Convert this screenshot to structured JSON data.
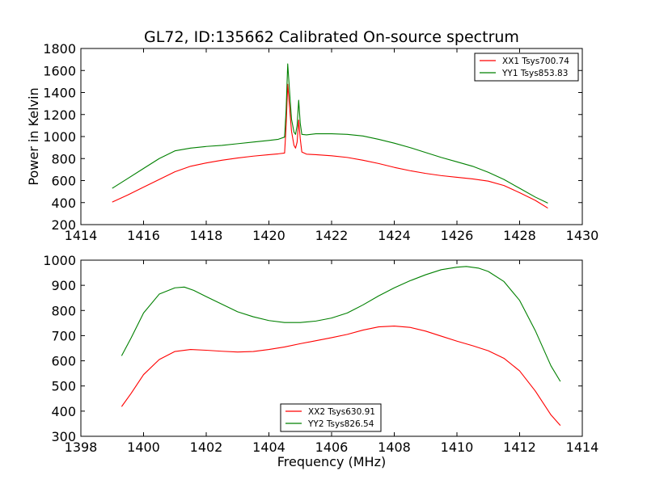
{
  "figure": {
    "title": "GL72, ID:135662 Calibrated On-source spectrum"
  },
  "colors": {
    "red": "#ff0000",
    "green": "#008000"
  },
  "chart_data": [
    {
      "type": "line",
      "title": "GL72, ID:135662 Calibrated On-source spectrum",
      "xlabel": "",
      "ylabel": "Power in Kelvin",
      "xlim": [
        1414,
        1430
      ],
      "ylim": [
        200,
        1800
      ],
      "xticks": [
        "1414",
        "1416",
        "1418",
        "1420",
        "1422",
        "1424",
        "1426",
        "1428",
        "1430"
      ],
      "yticks": [
        "200",
        "400",
        "600",
        "800",
        "1000",
        "1200",
        "1400",
        "1600",
        "1800"
      ],
      "grid": false,
      "legend_position": "top-right",
      "series": [
        {
          "name": "XX1 Tsys700.74",
          "color": "#ff0000",
          "points": [
            [
              1415.0,
              405
            ],
            [
              1415.5,
              470
            ],
            [
              1416.0,
              540
            ],
            [
              1416.5,
              610
            ],
            [
              1417.0,
              680
            ],
            [
              1417.5,
              730
            ],
            [
              1418.0,
              760
            ],
            [
              1418.5,
              785
            ],
            [
              1419.0,
              805
            ],
            [
              1419.5,
              822
            ],
            [
              1420.0,
              835
            ],
            [
              1420.3,
              843
            ],
            [
              1420.5,
              850
            ],
            [
              1420.55,
              1100
            ],
            [
              1420.6,
              1475
            ],
            [
              1420.65,
              1300
            ],
            [
              1420.72,
              1050
            ],
            [
              1420.8,
              920
            ],
            [
              1420.85,
              895
            ],
            [
              1420.9,
              950
            ],
            [
              1420.95,
              1150
            ],
            [
              1421.0,
              980
            ],
            [
              1421.05,
              860
            ],
            [
              1421.2,
              840
            ],
            [
              1421.5,
              835
            ],
            [
              1422.0,
              825
            ],
            [
              1422.5,
              810
            ],
            [
              1423.0,
              785
            ],
            [
              1423.5,
              755
            ],
            [
              1424.0,
              720
            ],
            [
              1424.5,
              690
            ],
            [
              1425.0,
              665
            ],
            [
              1425.5,
              645
            ],
            [
              1426.0,
              630
            ],
            [
              1426.5,
              615
            ],
            [
              1427.0,
              595
            ],
            [
              1427.5,
              555
            ],
            [
              1428.0,
              490
            ],
            [
              1428.5,
              420
            ],
            [
              1428.9,
              350
            ]
          ]
        },
        {
          "name": "YY1 Tsys853.83",
          "color": "#008000",
          "points": [
            [
              1415.0,
              530
            ],
            [
              1415.5,
              620
            ],
            [
              1416.0,
              710
            ],
            [
              1416.5,
              800
            ],
            [
              1417.0,
              870
            ],
            [
              1417.5,
              895
            ],
            [
              1418.0,
              910
            ],
            [
              1418.5,
              920
            ],
            [
              1419.0,
              935
            ],
            [
              1419.5,
              950
            ],
            [
              1420.0,
              965
            ],
            [
              1420.3,
              975
            ],
            [
              1420.5,
              995
            ],
            [
              1420.55,
              1250
            ],
            [
              1420.6,
              1660
            ],
            [
              1420.65,
              1450
            ],
            [
              1420.72,
              1160
            ],
            [
              1420.8,
              1040
            ],
            [
              1420.85,
              1020
            ],
            [
              1420.9,
              1100
            ],
            [
              1420.95,
              1330
            ],
            [
              1421.0,
              1120
            ],
            [
              1421.05,
              1020
            ],
            [
              1421.2,
              1015
            ],
            [
              1421.5,
              1025
            ],
            [
              1422.0,
              1025
            ],
            [
              1422.5,
              1020
            ],
            [
              1423.0,
              1005
            ],
            [
              1423.5,
              975
            ],
            [
              1424.0,
              940
            ],
            [
              1424.5,
              900
            ],
            [
              1425.0,
              855
            ],
            [
              1425.5,
              810
            ],
            [
              1426.0,
              770
            ],
            [
              1426.5,
              730
            ],
            [
              1427.0,
              675
            ],
            [
              1427.5,
              610
            ],
            [
              1428.0,
              530
            ],
            [
              1428.5,
              450
            ],
            [
              1428.9,
              395
            ]
          ]
        }
      ]
    },
    {
      "type": "line",
      "title": "",
      "xlabel": "Frequency (MHz)",
      "ylabel": "",
      "xlim": [
        1398,
        1414
      ],
      "ylim": [
        300,
        1000
      ],
      "xticks": [
        "1398",
        "1400",
        "1402",
        "1404",
        "1406",
        "1408",
        "1410",
        "1412",
        "1414"
      ],
      "yticks": [
        "300",
        "400",
        "500",
        "600",
        "700",
        "800",
        "900",
        "1000"
      ],
      "grid": false,
      "legend_position": "bottom-center",
      "series": [
        {
          "name": "XX2 Tsys630.91",
          "color": "#ff0000",
          "points": [
            [
              1399.3,
              418
            ],
            [
              1399.6,
              470
            ],
            [
              1400.0,
              545
            ],
            [
              1400.5,
              605
            ],
            [
              1401.0,
              637
            ],
            [
              1401.5,
              645
            ],
            [
              1402.0,
              642
            ],
            [
              1402.5,
              638
            ],
            [
              1403.0,
              635
            ],
            [
              1403.5,
              637
            ],
            [
              1404.0,
              645
            ],
            [
              1404.5,
              655
            ],
            [
              1405.0,
              668
            ],
            [
              1405.5,
              680
            ],
            [
              1406.0,
              692
            ],
            [
              1406.5,
              705
            ],
            [
              1407.0,
              722
            ],
            [
              1407.5,
              735
            ],
            [
              1408.0,
              738
            ],
            [
              1408.5,
              733
            ],
            [
              1409.0,
              718
            ],
            [
              1409.5,
              698
            ],
            [
              1410.0,
              678
            ],
            [
              1410.5,
              660
            ],
            [
              1411.0,
              640
            ],
            [
              1411.5,
              610
            ],
            [
              1412.0,
              560
            ],
            [
              1412.5,
              480
            ],
            [
              1413.0,
              385
            ],
            [
              1413.3,
              343
            ]
          ]
        },
        {
          "name": "YY2 Tsys826.54",
          "color": "#008000",
          "points": [
            [
              1399.3,
              620
            ],
            [
              1399.6,
              690
            ],
            [
              1400.0,
              790
            ],
            [
              1400.5,
              865
            ],
            [
              1401.0,
              890
            ],
            [
              1401.3,
              893
            ],
            [
              1401.6,
              880
            ],
            [
              1402.0,
              855
            ],
            [
              1402.5,
              825
            ],
            [
              1403.0,
              795
            ],
            [
              1403.5,
              775
            ],
            [
              1404.0,
              760
            ],
            [
              1404.5,
              752
            ],
            [
              1405.0,
              752
            ],
            [
              1405.5,
              758
            ],
            [
              1406.0,
              770
            ],
            [
              1406.5,
              790
            ],
            [
              1407.0,
              822
            ],
            [
              1407.5,
              858
            ],
            [
              1408.0,
              890
            ],
            [
              1408.5,
              918
            ],
            [
              1409.0,
              942
            ],
            [
              1409.5,
              962
            ],
            [
              1410.0,
              972
            ],
            [
              1410.3,
              975
            ],
            [
              1410.7,
              968
            ],
            [
              1411.0,
              955
            ],
            [
              1411.5,
              915
            ],
            [
              1412.0,
              840
            ],
            [
              1412.5,
              720
            ],
            [
              1413.0,
              580
            ],
            [
              1413.3,
              518
            ]
          ]
        }
      ]
    }
  ]
}
